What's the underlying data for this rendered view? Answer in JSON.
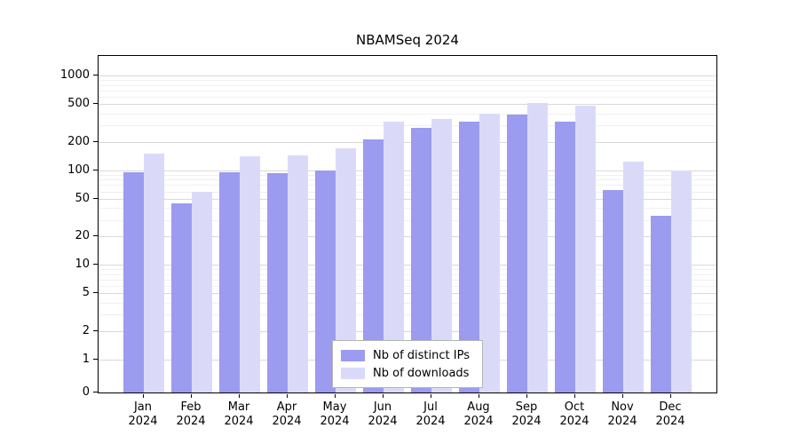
{
  "title": "NBAMSeq 2024",
  "chart_data": {
    "type": "bar",
    "yscale": "symlog",
    "grid": true,
    "legend_position": "lower center",
    "months": [
      "Jan",
      "Feb",
      "Mar",
      "Apr",
      "May",
      "Jun",
      "Jul",
      "Aug",
      "Sep",
      "Oct",
      "Nov",
      "Dec"
    ],
    "year": "2024",
    "yticks": [
      0,
      1,
      2,
      5,
      10,
      20,
      50,
      100,
      200,
      500,
      1000
    ],
    "yticks_minor": [
      3,
      4,
      6,
      7,
      8,
      9,
      30,
      40,
      60,
      70,
      80,
      90,
      300,
      400,
      600,
      700,
      800,
      900
    ],
    "ylim": [
      0,
      1600
    ],
    "series": [
      {
        "name": "Nb of distinct IPs",
        "color": "#9b9bef",
        "values": [
          95,
          45,
          95,
          93,
          100,
          215,
          280,
          330,
          390,
          330,
          62,
          33
        ]
      },
      {
        "name": "Nb of downloads",
        "color": "#dadaf8",
        "values": [
          150,
          60,
          140,
          145,
          170,
          330,
          350,
          400,
          520,
          480,
          125,
          100
        ]
      }
    ]
  }
}
